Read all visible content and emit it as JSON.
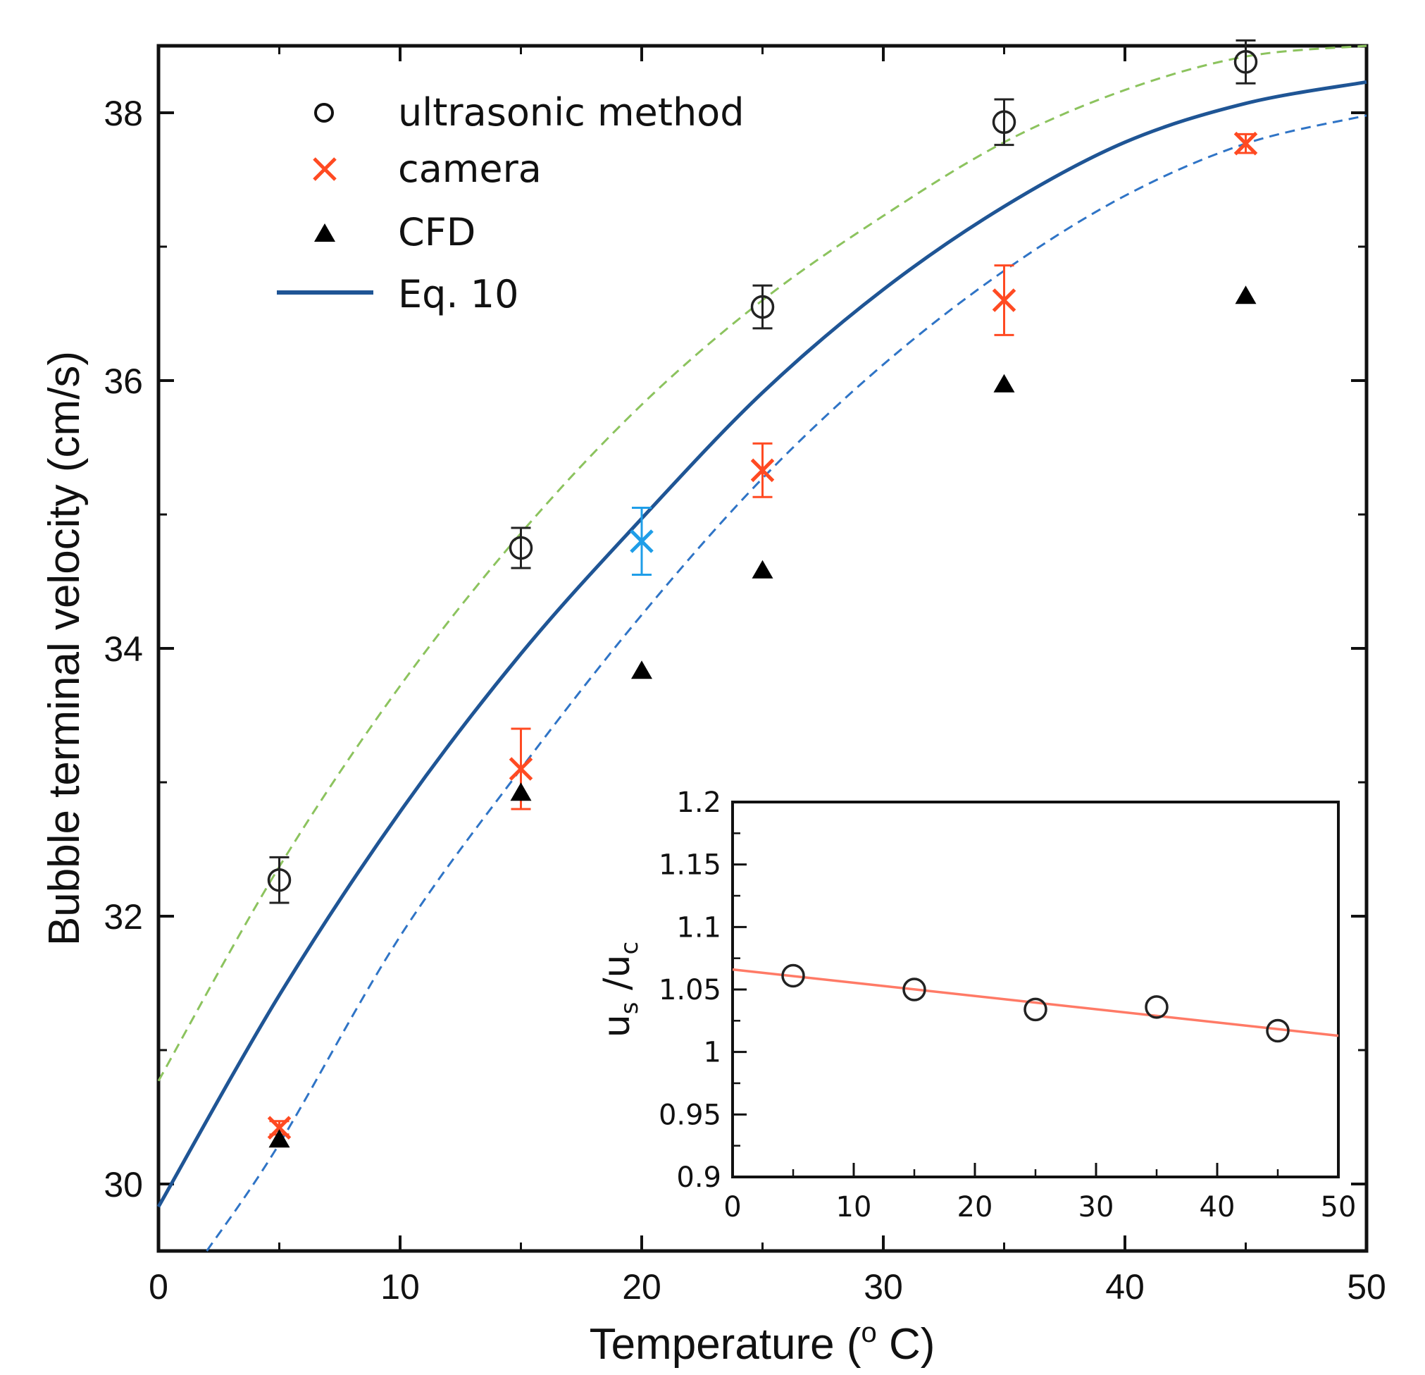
{
  "chart_data": [
    {
      "type": "scatter",
      "xlabel": "Temperature (o C)",
      "xlabel_parts": {
        "before": "Temperature (",
        "sup": "o",
        "after": " C)"
      },
      "ylabel": "Bubble terminal velocity (cm/s)",
      "xlim": [
        0,
        50
      ],
      "ylim": [
        29.5,
        38.5
      ],
      "x_ticks": [
        0,
        10,
        20,
        30,
        40,
        50
      ],
      "y_ticks": [
        30,
        32,
        34,
        36,
        38
      ],
      "y_minor_ticks": [
        31,
        33,
        35,
        37
      ],
      "legend_position": "top-left",
      "grid": false,
      "series": [
        {
          "name": "ultrasonic method",
          "marker": "open-circle",
          "color": "#222222",
          "points": [
            {
              "x": 5,
              "y": 32.27,
              "err": 0.17
            },
            {
              "x": 15,
              "y": 34.75,
              "err": 0.15
            },
            {
              "x": 25,
              "y": 36.55,
              "err": 0.16
            },
            {
              "x": 35,
              "y": 37.93,
              "err": 0.17
            },
            {
              "x": 45,
              "y": 38.38,
              "err": 0.16
            }
          ]
        },
        {
          "name": "camera",
          "marker": "x",
          "color": "#ff4a22",
          "points": [
            {
              "x": 5,
              "y": 30.42,
              "err": 0.05
            },
            {
              "x": 15,
              "y": 33.1,
              "err": 0.3
            },
            {
              "x": 25,
              "y": 35.33,
              "err": 0.2
            },
            {
              "x": 35,
              "y": 36.6,
              "err": 0.26
            },
            {
              "x": 45,
              "y": 37.77,
              "err": 0.07
            }
          ]
        },
        {
          "name": "",
          "marker": "x",
          "color": "#1f9ee8",
          "points": [
            {
              "x": 20,
              "y": 34.8,
              "err": 0.25
            }
          ]
        },
        {
          "name": "CFD",
          "marker": "filled-triangle",
          "color": "#000000",
          "points": [
            {
              "x": 5,
              "y": 30.33
            },
            {
              "x": 15,
              "y": 32.92
            },
            {
              "x": 20,
              "y": 33.83
            },
            {
              "x": 25,
              "y": 34.58
            },
            {
              "x": 35,
              "y": 35.97
            },
            {
              "x": 45,
              "y": 36.63
            }
          ]
        },
        {
          "name": "Eq. 10",
          "type": "line",
          "style": "solid",
          "color": "#1f5595",
          "x": [
            0,
            5,
            10,
            15,
            20,
            25,
            30,
            35,
            40,
            45,
            50
          ],
          "y": [
            29.83,
            31.41,
            32.78,
            33.96,
            34.97,
            35.91,
            36.68,
            37.3,
            37.78,
            38.07,
            38.23
          ]
        },
        {
          "name": "",
          "type": "line",
          "style": "dashed",
          "color": "#8cc35e",
          "x": [
            0,
            5,
            10,
            15,
            20,
            25,
            30,
            35,
            40,
            45,
            50
          ],
          "y": [
            30.77,
            32.37,
            33.72,
            34.86,
            35.82,
            36.6,
            37.23,
            37.78,
            38.17,
            38.42,
            38.5
          ]
        },
        {
          "name": "",
          "type": "line",
          "style": "dashed",
          "color": "#2f74c6",
          "x": [
            2,
            5,
            10,
            15,
            20,
            25,
            30,
            35,
            40,
            45,
            50
          ],
          "y": [
            29.5,
            30.3,
            31.85,
            33.1,
            34.25,
            35.27,
            36.12,
            36.82,
            37.38,
            37.77,
            37.98
          ]
        }
      ]
    },
    {
      "type": "scatter",
      "inset": true,
      "xlabel": "",
      "ylabel": "us /uc",
      "ylabel_parts": {
        "u1": "u",
        "s1": "s",
        "mid": " /u",
        "s2": "c"
      },
      "xlim": [
        0,
        50
      ],
      "ylim": [
        0.9,
        1.2
      ],
      "x_ticks": [
        0,
        10,
        20,
        30,
        40,
        50
      ],
      "y_ticks": [
        0.9,
        0.95,
        1,
        1.05,
        1.1,
        1.15,
        1.2
      ],
      "y_tick_labels": [
        "0.9",
        "0.95",
        "1",
        "1.05",
        "1.1",
        "1.15",
        "1.2"
      ],
      "grid": false,
      "series": [
        {
          "name": "",
          "marker": "open-circle",
          "color": "#222222",
          "points": [
            {
              "x": 5,
              "y": 1.061
            },
            {
              "x": 15,
              "y": 1.05
            },
            {
              "x": 25,
              "y": 1.034
            },
            {
              "x": 35,
              "y": 1.036
            },
            {
              "x": 45,
              "y": 1.017
            }
          ]
        },
        {
          "name": "",
          "type": "line",
          "style": "solid",
          "color": "#ff7a66",
          "x": [
            0,
            50
          ],
          "y": [
            1.066,
            1.013
          ]
        }
      ]
    }
  ]
}
